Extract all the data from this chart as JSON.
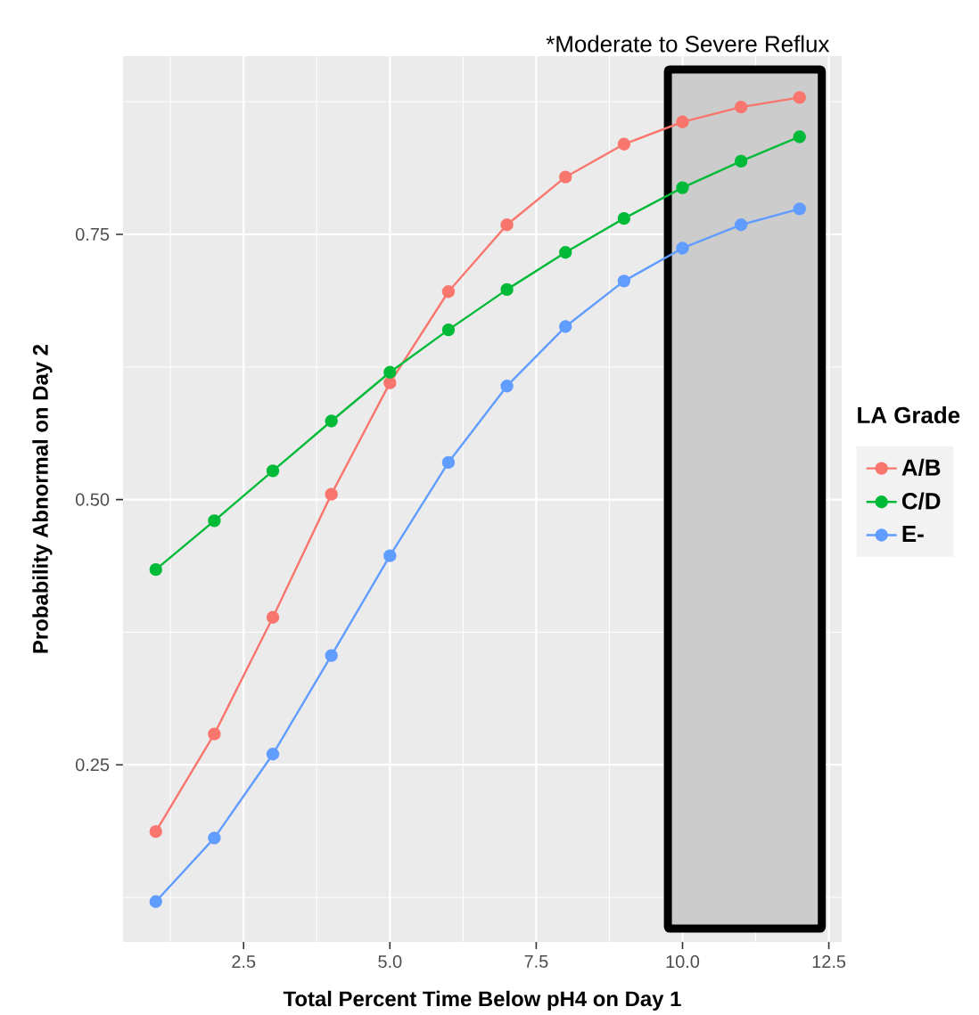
{
  "chart_data": {
    "type": "line",
    "xlabel": "Total Percent Time Below pH4 on Day 1",
    "ylabel": "Probability Abnormal on Day 2",
    "legend_title": "LA Grade",
    "x": [
      1,
      2,
      3,
      4,
      5,
      6,
      7,
      8,
      9,
      10,
      11,
      12
    ],
    "series": [
      {
        "name": "A/B",
        "color": "#f8766d",
        "values": [
          0.187,
          0.279,
          0.389,
          0.505,
          0.61,
          0.696,
          0.759,
          0.804,
          0.835,
          0.856,
          0.87,
          0.879
        ]
      },
      {
        "name": "C/D",
        "color": "#00ba38",
        "values": [
          0.434,
          0.48,
          0.527,
          0.574,
          0.62,
          0.66,
          0.698,
          0.733,
          0.765,
          0.794,
          0.819,
          0.842
        ]
      },
      {
        "name": "E-",
        "color": "#619cff",
        "values": [
          0.121,
          0.181,
          0.26,
          0.353,
          0.447,
          0.535,
          0.607,
          0.663,
          0.706,
          0.737,
          0.759,
          0.774
        ]
      }
    ],
    "xlim": [
      0.44,
      12.72
    ],
    "ylim": [
      0.083,
      0.918
    ],
    "xticks": [
      {
        "value": 2.5,
        "label": "2.5"
      },
      {
        "value": 5,
        "label": "5.0"
      },
      {
        "value": 7.5,
        "label": "7.5"
      },
      {
        "value": 10,
        "label": "10.0"
      },
      {
        "value": 12.5,
        "label": "12.5"
      }
    ],
    "yticks": [
      {
        "value": 0.25,
        "label": "0.25"
      },
      {
        "value": 0.5,
        "label": "0.50"
      },
      {
        "value": 0.75,
        "label": "0.75"
      }
    ],
    "bands": [
      {
        "axis": "x",
        "from": 9.75,
        "to": 12.38,
        "label": "*Moderate to Severe Reflux",
        "color": "#cccccc"
      }
    ],
    "grid": true,
    "legend": "right",
    "marker": "circle",
    "line_style": "solid"
  }
}
